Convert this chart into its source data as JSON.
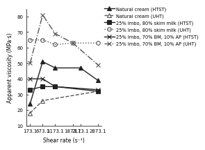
{
  "shear_rates": [
    173.1,
    673.1,
    1173.1,
    1873.1,
    2173.1,
    2873.1
  ],
  "series": [
    {
      "label": "Natural cream (HTST)",
      "y": [
        24,
        51,
        47,
        null,
        47,
        39
      ],
      "style": "solid",
      "marker": "^",
      "color": "#222222",
      "markersize": 4,
      "linewidth": 1.0,
      "fillstyle": "full",
      "dashes": []
    },
    {
      "label": "Natural cream (UHT)",
      "y": [
        18,
        26,
        null,
        null,
        null,
        32
      ],
      "style": "dashed",
      "marker": "^",
      "color": "#555555",
      "markersize": 4,
      "linewidth": 1.0,
      "fillstyle": "none",
      "dashes": [
        4,
        2
      ]
    },
    {
      "label": "25% lmbo, 80% skim milk (HTST)",
      "y": [
        33,
        35,
        35,
        null,
        null,
        32
      ],
      "style": "solid",
      "marker": "s",
      "color": "#222222",
      "markersize": 4,
      "linewidth": 1.0,
      "fillstyle": "full",
      "dashes": []
    },
    {
      "label": "25% lmbo, 80% skim milk (UHT)",
      "y": [
        65,
        65,
        62,
        63,
        null,
        63
      ],
      "style": "dotted",
      "marker": "o",
      "color": "#555555",
      "markersize": 4,
      "linewidth": 1.0,
      "fillstyle": "none",
      "dashes": [
        1,
        2
      ]
    },
    {
      "label": "25% lmbo, 70% BM, 10% AP (HTST)",
      "y": [
        40,
        40,
        35,
        null,
        null,
        33
      ],
      "style": "solid",
      "marker": "x",
      "color": "#222222",
      "markersize": 5,
      "linewidth": 1.0,
      "fillstyle": "full",
      "dashes": []
    },
    {
      "label": "25% lmbo, 70% BM, 10% AP (UHT)",
      "y": [
        50,
        81,
        69,
        63,
        null,
        49
      ],
      "style": "dashdot",
      "marker": "x",
      "color": "#555555",
      "markersize": 5,
      "linewidth": 1.0,
      "fillstyle": "none",
      "dashes": [
        4,
        2,
        1,
        2
      ]
    }
  ],
  "xlabel": "Shear rate (s⁻¹)",
  "ylabel": "Apparent viscosity (MPa·s)",
  "ylim": [
    10,
    85
  ],
  "yticks": [
    10,
    20,
    30,
    40,
    50,
    60,
    70,
    80
  ],
  "xticks": [
    173.1,
    673.1,
    1173.1,
    1873.1,
    2173.1,
    2873.1
  ],
  "xtick_labels": [
    "173.1",
    "673.1",
    "1173.1",
    "1873.1",
    "2173.1",
    "2873.1"
  ],
  "background_color": "#ffffff",
  "axis_fontsize": 5.5,
  "tick_fontsize": 5.0,
  "legend_fontsize": 4.8
}
